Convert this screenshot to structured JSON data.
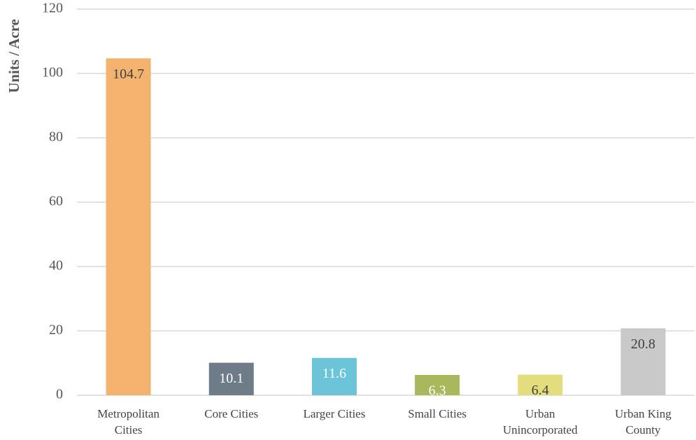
{
  "chart_data": {
    "type": "bar",
    "y_label": "Units / Acre",
    "categories": [
      "Metropolitan Cities",
      "Core Cities",
      "Larger Cities",
      "Small Cities",
      "Urban Unincorporated",
      "Urban King County"
    ],
    "values": [
      104.7,
      10.1,
      11.6,
      6.3,
      6.4,
      20.8
    ],
    "colors": [
      "#f4b26f",
      "#6e7c89",
      "#6cc4d8",
      "#a7b95c",
      "#e3dd7e",
      "#c9c9c9"
    ],
    "ylim": [
      0,
      120
    ],
    "yticks": [
      0,
      20,
      40,
      60,
      80,
      100,
      120
    ],
    "grid": true
  }
}
